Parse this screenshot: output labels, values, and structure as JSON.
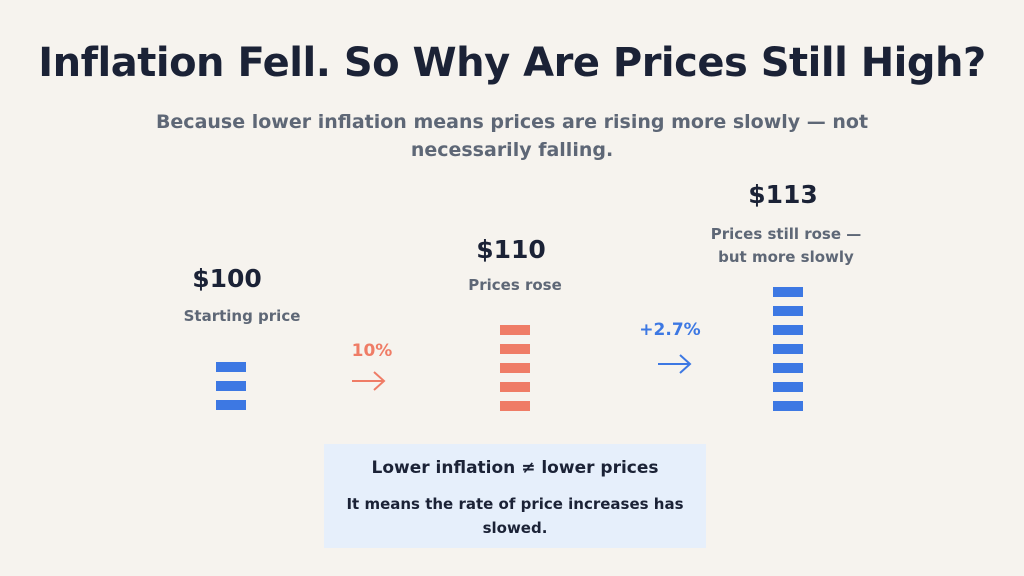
{
  "title": "Inflation Fell. So Why Are Prices Still High?",
  "subtitle": "Because lower inflation means prices are rising more slowly — not necessarily falling.",
  "colors": {
    "blue": "#3d78e3",
    "orange": "#ef7c66",
    "text_dark": "#1b2236",
    "text_gray": "#5e6776",
    "note_bg": "#e6effb",
    "background": "#f6f3ee"
  },
  "stages": [
    {
      "price": "$100",
      "caption_lines": [
        "Starting price"
      ],
      "bricks": 3,
      "color": "blue"
    },
    {
      "price": "$110",
      "caption_lines": [
        "Prices rose"
      ],
      "bricks": 5,
      "color": "orange"
    },
    {
      "price": "$113",
      "caption_lines": [
        "Prices still rose —",
        "but more slowly"
      ],
      "bricks": 7,
      "color": "blue"
    }
  ],
  "changes": [
    {
      "label": "10%",
      "color": "orange",
      "icon": "arrow-right-icon"
    },
    {
      "label": "+2.7%",
      "color": "blue",
      "icon": "arrow-right-icon"
    }
  ],
  "note": {
    "heading": "Lower inflation ≠ lower prices",
    "body": "It means the rate of price increases has slowed."
  }
}
